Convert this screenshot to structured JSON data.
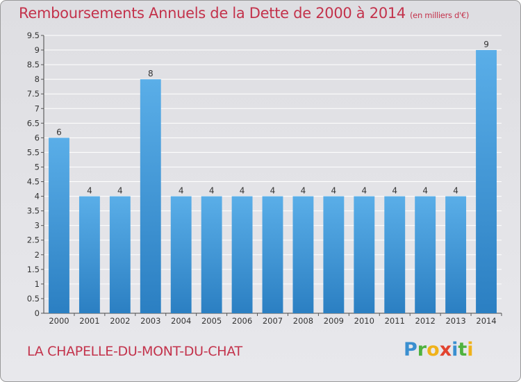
{
  "title": "Remboursements Annuels de la Dette de 2000 à 2014",
  "subtitle": "(en milliers d'€)",
  "commune": "LA CHAPELLE-DU-MONT-DU-CHAT",
  "logo": {
    "letters": [
      "P",
      "r",
      "o",
      "x",
      "i",
      "t",
      "i"
    ],
    "colors": [
      "#3a8fd0",
      "#4fb23e",
      "#f0b21a",
      "#e2432f",
      "#3a8fd0",
      "#4fb23e",
      "#f0b21a"
    ]
  },
  "colors": {
    "bar_light": "#5aaee8",
    "bar_dark": "#2b7fc2",
    "accent": "#c3324b",
    "grid": "#ffffff"
  },
  "chart_data": {
    "type": "bar",
    "categories": [
      "2000",
      "2001",
      "2002",
      "2003",
      "2004",
      "2005",
      "2006",
      "2007",
      "2008",
      "2009",
      "2010",
      "2011",
      "2012",
      "2013",
      "2014"
    ],
    "values": [
      6,
      4,
      4,
      8,
      4,
      4,
      4,
      4,
      4,
      4,
      4,
      4,
      4,
      4,
      9
    ],
    "data_labels": [
      "6",
      "4",
      "4",
      "8",
      "4",
      "4",
      "4",
      "4",
      "4",
      "4",
      "4",
      "4",
      "4",
      "4",
      "9"
    ],
    "ylim": [
      0,
      9.5
    ],
    "yticks": [
      "0",
      "0.5",
      "1",
      "1.5",
      "2",
      "2.5",
      "3",
      "3.5",
      "4",
      "4.5",
      "5",
      "5.5",
      "6",
      "6.5",
      "7",
      "7.5",
      "8",
      "8.5",
      "9",
      "9.5"
    ],
    "ytick_values": [
      0,
      0.5,
      1,
      1.5,
      2,
      2.5,
      3,
      3.5,
      4,
      4.5,
      5,
      5.5,
      6,
      6.5,
      7,
      7.5,
      8,
      8.5,
      9,
      9.5
    ],
    "xlabel": "",
    "ylabel": "",
    "grid": true,
    "legend": "none"
  }
}
